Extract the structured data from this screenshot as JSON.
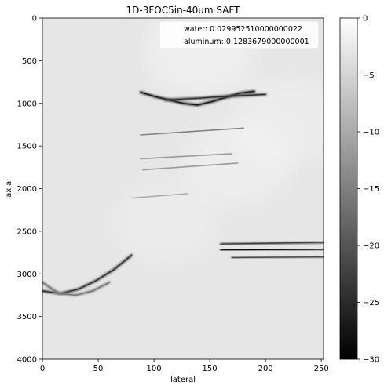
{
  "chart_data": {
    "type": "heatmap",
    "title": "1D-3FOC5in-40um SAFT",
    "xlabel": "lateral",
    "ylabel": "axial",
    "xlim": [
      0,
      252
    ],
    "ylim": [
      4000,
      0
    ],
    "x_ticks": [
      0,
      50,
      100,
      150,
      200,
      250
    ],
    "x_tick_labels": [
      "0",
      "50",
      "100",
      "150",
      "200",
      "250"
    ],
    "y_ticks": [
      0,
      500,
      1000,
      1500,
      2000,
      2500,
      3000,
      3500,
      4000
    ],
    "y_tick_labels": [
      "0",
      "500",
      "1000",
      "1500",
      "2000",
      "2500",
      "3000",
      "3500",
      "4000"
    ],
    "colormap": "gray",
    "color_range": [
      -30,
      0
    ],
    "colorbar_ticks": [
      0,
      -5,
      -10,
      -15,
      -20,
      -25,
      -30
    ],
    "colorbar_tick_labels": [
      "0",
      "−5",
      "−10",
      "−15",
      "−20",
      "−25",
      "−30"
    ],
    "legend_placement": "top-right",
    "legend_entries": [
      "water: 0.029952510000000022",
      "aluminum: 0.1283679000000001"
    ],
    "background_level_db": -3,
    "features": [
      {
        "kind": "echo-band",
        "x": [
          88,
          190
        ],
        "axial": [
          870,
          920,
          960,
          1000,
          1020,
          980,
          930,
          880,
          860
        ],
        "strength_db": -25
      },
      {
        "kind": "echo-band",
        "x": [
          110,
          200
        ],
        "axial": [
          960,
          950,
          940,
          925,
          915,
          905,
          895
        ],
        "strength_db": -22
      },
      {
        "kind": "streak",
        "x": [
          88,
          180
        ],
        "axial": [
          1370,
          1290
        ],
        "strength_db": -15
      },
      {
        "kind": "streak",
        "x": [
          88,
          170
        ],
        "axial": [
          1650,
          1590
        ],
        "strength_db": -12
      },
      {
        "kind": "streak",
        "x": [
          90,
          175
        ],
        "axial": [
          1780,
          1700
        ],
        "strength_db": -12
      },
      {
        "kind": "streak",
        "x": [
          80,
          130
        ],
        "axial": [
          2110,
          2060
        ],
        "strength_db": -10
      },
      {
        "kind": "echo-band",
        "x": [
          160,
          252
        ],
        "axial": [
          2650,
          2640,
          2630
        ],
        "strength_db": -20
      },
      {
        "kind": "echo-band",
        "x": [
          160,
          252
        ],
        "axial": [
          2720,
          2715,
          2710
        ],
        "strength_db": -26
      },
      {
        "kind": "echo-band",
        "x": [
          170,
          252
        ],
        "axial": [
          2810,
          2805,
          2800
        ],
        "strength_db": -18
      },
      {
        "kind": "echo-band",
        "x": [
          0,
          80
        ],
        "axial": [
          3200,
          3230,
          3180,
          3080,
          2950,
          2780
        ],
        "strength_db": -22
      },
      {
        "kind": "echo-band",
        "x": [
          0,
          60
        ],
        "axial": [
          3100,
          3230,
          3250,
          3200,
          3100
        ],
        "strength_db": -14
      }
    ]
  }
}
